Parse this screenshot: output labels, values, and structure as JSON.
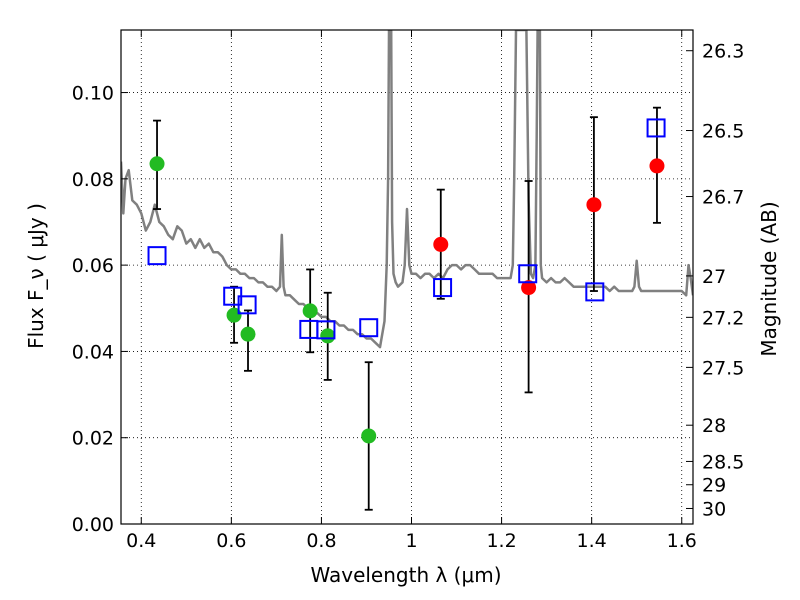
{
  "chart_data": {
    "type": "scatter",
    "xlabel": "Wavelength  λ (μm)",
    "ylabel": "Flux  F_ν  ( μJy )",
    "ylabel_right": "Magnitude (AB)",
    "xlim": [
      0.355,
      1.625
    ],
    "ylim": [
      0.0,
      0.1145
    ],
    "x_ticks": [
      0.4,
      0.6,
      0.8,
      1.0,
      1.2,
      1.4,
      1.6
    ],
    "x_tick_labels": [
      "0.4",
      "0.6",
      "0.8",
      "1",
      "1.2",
      "1.4",
      "1.6"
    ],
    "y_ticks": [
      0.0,
      0.02,
      0.04,
      0.06,
      0.08,
      0.1
    ],
    "y_tick_labels": [
      "0.00",
      "0.02",
      "0.04",
      "0.06",
      "0.08",
      "0.10"
    ],
    "right_ticks": [
      {
        "label": "26.3",
        "flux": 0.1097
      },
      {
        "label": "26.5",
        "flux": 0.0912
      },
      {
        "label": "26.7",
        "flux": 0.0759
      },
      {
        "label": "27",
        "flux": 0.0575
      },
      {
        "label": "27.2",
        "flux": 0.0479
      },
      {
        "label": "27.5",
        "flux": 0.0363
      },
      {
        "label": "28",
        "flux": 0.0229
      },
      {
        "label": "28.5",
        "flux": 0.0145
      },
      {
        "label": "29",
        "flux": 0.0091
      },
      {
        "label": "30",
        "flux": 0.0036
      }
    ],
    "grid": true,
    "colors": {
      "model": "#808080",
      "optical": "#22bb22",
      "nir": "#ff0000",
      "model_phot": "#0000ff",
      "errorbar": "#000000"
    },
    "series": [
      {
        "kind": "line",
        "points": [
          [
            0.355,
            0.084
          ],
          [
            0.36,
            0.072
          ],
          [
            0.365,
            0.08
          ],
          [
            0.372,
            0.082
          ],
          [
            0.38,
            0.075
          ],
          [
            0.39,
            0.074
          ],
          [
            0.4,
            0.072
          ],
          [
            0.41,
            0.068
          ],
          [
            0.42,
            0.07
          ],
          [
            0.43,
            0.074
          ],
          [
            0.44,
            0.07
          ],
          [
            0.45,
            0.069
          ],
          [
            0.46,
            0.067
          ],
          [
            0.47,
            0.066
          ],
          [
            0.48,
            0.069
          ],
          [
            0.49,
            0.068
          ],
          [
            0.5,
            0.065
          ],
          [
            0.51,
            0.066
          ],
          [
            0.52,
            0.064
          ],
          [
            0.53,
            0.066
          ],
          [
            0.54,
            0.064
          ],
          [
            0.55,
            0.065
          ],
          [
            0.56,
            0.063
          ],
          [
            0.57,
            0.063
          ],
          [
            0.58,
            0.062
          ],
          [
            0.59,
            0.06
          ],
          [
            0.6,
            0.059
          ],
          [
            0.61,
            0.059
          ],
          [
            0.62,
            0.058
          ],
          [
            0.63,
            0.058
          ],
          [
            0.64,
            0.057
          ],
          [
            0.65,
            0.057
          ],
          [
            0.66,
            0.056
          ],
          [
            0.67,
            0.056
          ],
          [
            0.68,
            0.055
          ],
          [
            0.69,
            0.055
          ],
          [
            0.7,
            0.054
          ],
          [
            0.708,
            0.055
          ],
          [
            0.712,
            0.067
          ],
          [
            0.716,
            0.055
          ],
          [
            0.72,
            0.053
          ],
          [
            0.73,
            0.053
          ],
          [
            0.74,
            0.052
          ],
          [
            0.75,
            0.051
          ],
          [
            0.76,
            0.051
          ],
          [
            0.77,
            0.05
          ],
          [
            0.78,
            0.049
          ],
          [
            0.79,
            0.049
          ],
          [
            0.8,
            0.048
          ],
          [
            0.81,
            0.048
          ],
          [
            0.82,
            0.047
          ],
          [
            0.83,
            0.047
          ],
          [
            0.84,
            0.046
          ],
          [
            0.85,
            0.046
          ],
          [
            0.86,
            0.045
          ],
          [
            0.87,
            0.045
          ],
          [
            0.88,
            0.044
          ],
          [
            0.89,
            0.044
          ],
          [
            0.9,
            0.043
          ],
          [
            0.91,
            0.043
          ],
          [
            0.92,
            0.042
          ],
          [
            0.93,
            0.041
          ],
          [
            0.94,
            0.047
          ],
          [
            0.945,
            0.06
          ],
          [
            0.948,
            0.08
          ],
          [
            0.95,
            0.1145
          ],
          [
            0.955,
            0.1145
          ],
          [
            0.957,
            0.07
          ],
          [
            0.96,
            0.058
          ],
          [
            0.965,
            0.056
          ],
          [
            0.97,
            0.055
          ],
          [
            0.98,
            0.056
          ],
          [
            0.985,
            0.06
          ],
          [
            0.99,
            0.073
          ],
          [
            0.995,
            0.06
          ],
          [
            1.0,
            0.058
          ],
          [
            1.01,
            0.058
          ],
          [
            1.02,
            0.057
          ],
          [
            1.03,
            0.058
          ],
          [
            1.04,
            0.058
          ],
          [
            1.05,
            0.057
          ],
          [
            1.06,
            0.058
          ],
          [
            1.07,
            0.057
          ],
          [
            1.08,
            0.059
          ],
          [
            1.09,
            0.06
          ],
          [
            1.1,
            0.06
          ],
          [
            1.11,
            0.059
          ],
          [
            1.12,
            0.06
          ],
          [
            1.13,
            0.06
          ],
          [
            1.14,
            0.059
          ],
          [
            1.15,
            0.058
          ],
          [
            1.16,
            0.058
          ],
          [
            1.17,
            0.058
          ],
          [
            1.18,
            0.058
          ],
          [
            1.19,
            0.057
          ],
          [
            1.2,
            0.057
          ],
          [
            1.21,
            0.057
          ],
          [
            1.22,
            0.057
          ],
          [
            1.225,
            0.06
          ],
          [
            1.228,
            0.08
          ],
          [
            1.232,
            0.1145
          ],
          [
            1.255,
            0.1145
          ],
          [
            1.26,
            0.075
          ],
          [
            1.265,
            0.058
          ],
          [
            1.27,
            0.057
          ],
          [
            1.275,
            0.06
          ],
          [
            1.278,
            0.09
          ],
          [
            1.28,
            0.1145
          ],
          [
            1.285,
            0.1145
          ],
          [
            1.287,
            0.06
          ],
          [
            1.29,
            0.057
          ],
          [
            1.3,
            0.056
          ],
          [
            1.31,
            0.057
          ],
          [
            1.32,
            0.056
          ],
          [
            1.33,
            0.056
          ],
          [
            1.34,
            0.057
          ],
          [
            1.35,
            0.056
          ],
          [
            1.36,
            0.055
          ],
          [
            1.37,
            0.055
          ],
          [
            1.38,
            0.055
          ],
          [
            1.39,
            0.055
          ],
          [
            1.4,
            0.055
          ],
          [
            1.42,
            0.055
          ],
          [
            1.43,
            0.055
          ],
          [
            1.44,
            0.054
          ],
          [
            1.45,
            0.055
          ],
          [
            1.46,
            0.054
          ],
          [
            1.47,
            0.054
          ],
          [
            1.48,
            0.054
          ],
          [
            1.49,
            0.054
          ],
          [
            1.495,
            0.055
          ],
          [
            1.5,
            0.061
          ],
          [
            1.505,
            0.055
          ],
          [
            1.51,
            0.054
          ],
          [
            1.52,
            0.054
          ],
          [
            1.53,
            0.054
          ],
          [
            1.54,
            0.054
          ],
          [
            1.55,
            0.054
          ],
          [
            1.56,
            0.054
          ],
          [
            1.57,
            0.054
          ],
          [
            1.58,
            0.054
          ],
          [
            1.59,
            0.054
          ],
          [
            1.6,
            0.054
          ],
          [
            1.61,
            0.053
          ],
          [
            1.615,
            0.06
          ],
          [
            1.62,
            0.057
          ],
          [
            1.625,
            0.053
          ]
        ]
      },
      {
        "kind": "points",
        "marker": "circle",
        "points": [
          {
            "x": 0.435,
            "y": 0.0835,
            "lo": 0.073,
            "hi": 0.0935
          },
          {
            "x": 0.606,
            "y": 0.0484,
            "lo": 0.042,
            "hi": 0.055
          },
          {
            "x": 0.637,
            "y": 0.044,
            "lo": 0.0355,
            "hi": 0.0495
          },
          {
            "x": 0.775,
            "y": 0.0494,
            "lo": 0.0398,
            "hi": 0.059
          },
          {
            "x": 0.814,
            "y": 0.0436,
            "lo": 0.0334,
            "hi": 0.0536
          },
          {
            "x": 0.905,
            "y": 0.0204,
            "lo": 0.0033,
            "hi": 0.0375
          }
        ]
      },
      {
        "kind": "points",
        "marker": "circle",
        "points": [
          {
            "x": 1.065,
            "y": 0.0648,
            "lo": 0.0522,
            "hi": 0.0775
          },
          {
            "x": 1.26,
            "y": 0.0548,
            "lo": 0.0305,
            "hi": 0.0795
          },
          {
            "x": 1.405,
            "y": 0.074,
            "lo": 0.054,
            "hi": 0.0943
          },
          {
            "x": 1.545,
            "y": 0.083,
            "lo": 0.0698,
            "hi": 0.0965
          }
        ]
      },
      {
        "kind": "points",
        "marker": "square",
        "points": [
          {
            "x": 0.435,
            "y": 0.0622
          },
          {
            "x": 0.603,
            "y": 0.0528
          },
          {
            "x": 0.635,
            "y": 0.0508
          },
          {
            "x": 0.772,
            "y": 0.0451
          },
          {
            "x": 0.81,
            "y": 0.045
          },
          {
            "x": 0.905,
            "y": 0.0455
          },
          {
            "x": 1.069,
            "y": 0.0548
          },
          {
            "x": 1.258,
            "y": 0.058
          },
          {
            "x": 1.407,
            "y": 0.0538
          },
          {
            "x": 1.543,
            "y": 0.0918
          }
        ]
      }
    ]
  }
}
